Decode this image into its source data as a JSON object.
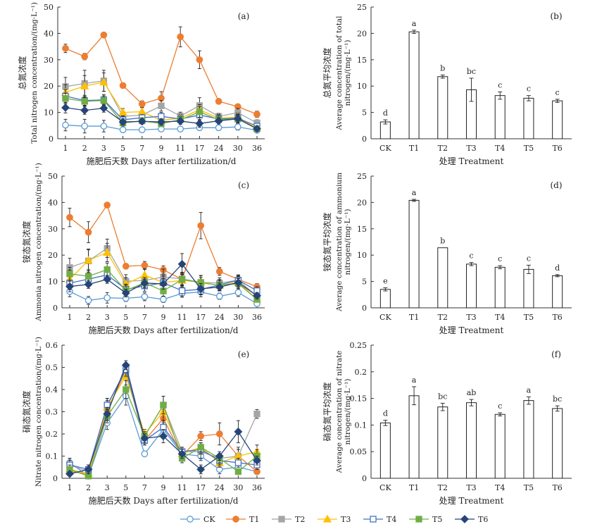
{
  "colors": {
    "CK": "#5b9bd5",
    "T1": "#ed7d31",
    "T2": "#a5a5a5",
    "T3": "#ffc000",
    "T4": "#4472c4",
    "T5": "#70ad47",
    "T6": "#264478"
  },
  "series_styles": {
    "CK": {
      "marker": "circle",
      "filled": false
    },
    "T1": {
      "marker": "circle",
      "filled": true
    },
    "T2": {
      "marker": "square",
      "filled": true
    },
    "T3": {
      "marker": "triangle",
      "filled": true
    },
    "T4": {
      "marker": "square",
      "filled": false
    },
    "T5": {
      "marker": "square",
      "filled": true
    },
    "T6": {
      "marker": "diamond",
      "filled": true
    }
  },
  "legend": [
    "CK",
    "T1",
    "T2",
    "T3",
    "T4",
    "T5",
    "T6"
  ],
  "chart_data": [
    {
      "id": "a",
      "type": "line",
      "panel_label": "(a)",
      "title_cn": "总氮浓度",
      "ylabel": "Total nitrogen concentration/(mg·L⁻¹)",
      "xlabel": "施肥后天数 Days after fertilization/d",
      "categories": [
        "1",
        "2",
        "3",
        "5",
        "7",
        "9",
        "11",
        "17",
        "24",
        "30",
        "36"
      ],
      "ylim": [
        0,
        50
      ],
      "yticks": [
        0,
        10,
        20,
        30,
        40,
        50
      ],
      "series": [
        {
          "name": "CK",
          "values": [
            5.2,
            4.8,
            4.8,
            3.4,
            3.4,
            3.7,
            3.7,
            4.2,
            4.2,
            4.5,
            3.2
          ],
          "err": [
            2.2,
            2.6,
            2.2,
            0.8,
            0.6,
            0.6,
            0.8,
            1.0,
            1.0,
            1.2,
            0.8
          ]
        },
        {
          "name": "T1",
          "values": [
            34.3,
            31.2,
            39.4,
            20.2,
            13.2,
            15.4,
            38.7,
            30.0,
            14.2,
            12.2,
            9.3
          ],
          "err": [
            1.6,
            1.2,
            0.5,
            0.5,
            1.2,
            2.5,
            3.8,
            3.4,
            0.5,
            0.5,
            1.2
          ]
        },
        {
          "name": "T2",
          "values": [
            19.8,
            21.0,
            22.0,
            8.5,
            9.0,
            12.5,
            8.6,
            12.6,
            8.5,
            9.9,
            6.0
          ],
          "err": [
            3.5,
            5.0,
            4.0,
            1.8,
            1.5,
            2.0,
            1.5,
            3.0,
            1.2,
            1.6,
            1.2
          ]
        },
        {
          "name": "T3",
          "values": [
            17.6,
            20.0,
            21.5,
            10.0,
            10.3,
            7.0,
            7.8,
            11.0,
            7.8,
            8.2,
            4.0
          ],
          "err": [
            3.0,
            4.0,
            3.5,
            1.5,
            1.5,
            1.5,
            1.5,
            2.0,
            1.5,
            1.5,
            1.0
          ]
        },
        {
          "name": "T4",
          "values": [
            16.2,
            14.5,
            14.8,
            7.2,
            8.0,
            8.5,
            7.5,
            9.0,
            7.5,
            7.8,
            4.8
          ],
          "err": [
            2.5,
            2.0,
            2.0,
            1.5,
            1.2,
            1.5,
            1.2,
            2.0,
            1.5,
            1.5,
            1.0
          ]
        },
        {
          "name": "T5",
          "values": [
            15.3,
            14.2,
            14.5,
            6.0,
            6.8,
            5.8,
            7.2,
            10.2,
            7.2,
            7.5,
            3.8
          ],
          "err": [
            2.0,
            1.5,
            1.8,
            1.2,
            1.2,
            1.2,
            1.2,
            2.0,
            1.2,
            1.5,
            1.0
          ]
        },
        {
          "name": "T6",
          "values": [
            11.8,
            10.8,
            11.6,
            6.4,
            6.6,
            6.4,
            6.7,
            5.8,
            6.8,
            7.6,
            3.8
          ],
          "err": [
            2.0,
            1.5,
            1.5,
            1.2,
            1.0,
            1.2,
            1.2,
            1.5,
            1.2,
            1.5,
            1.0
          ]
        }
      ]
    },
    {
      "id": "b",
      "type": "bar",
      "panel_label": "(b)",
      "title_cn": "总氮平均浓度",
      "ylabel": "Average concentration of total nitrogen/(mg·L⁻¹)",
      "xlabel": "处理 Treatment",
      "categories": [
        "CK",
        "T1",
        "T2",
        "T3",
        "T4",
        "T5",
        "T6"
      ],
      "values": [
        3.2,
        20.3,
        11.8,
        9.3,
        8.2,
        7.7,
        7.2
      ],
      "err": [
        0.4,
        0.3,
        0.3,
        2.2,
        0.7,
        0.5,
        0.3
      ],
      "letters": [
        "d",
        "a",
        "b",
        "bc",
        "c",
        "c",
        "c"
      ],
      "ylim": [
        0,
        25
      ],
      "yticks": [
        0,
        5,
        10,
        15,
        20,
        25
      ]
    },
    {
      "id": "c",
      "type": "line",
      "panel_label": "(c)",
      "title_cn": "铵态氮浓度",
      "ylabel": "Ammonia nitrogen concentration/(mg·L⁻¹)",
      "xlabel": "施肥后天数 Days after fertilization/d",
      "categories": [
        "1",
        "2",
        "3",
        "5",
        "7",
        "9",
        "11",
        "17",
        "24",
        "30",
        "36"
      ],
      "ylim": [
        0,
        50
      ],
      "yticks": [
        0,
        10,
        20,
        30,
        40,
        50
      ],
      "series": [
        {
          "name": "CK",
          "values": [
            6.2,
            2.8,
            3.8,
            3.6,
            4.2,
            3.2,
            5.5,
            6.0,
            4.4,
            5.8,
            1.6
          ],
          "err": [
            2.0,
            1.5,
            2.0,
            1.2,
            1.5,
            1.2,
            1.5,
            1.8,
            1.2,
            1.5,
            0.8
          ]
        },
        {
          "name": "T1",
          "values": [
            34.3,
            28.7,
            39.0,
            15.8,
            16.1,
            14.4,
            10.8,
            31.2,
            13.8,
            10.8,
            8.0
          ],
          "err": [
            3.5,
            4.0,
            0.5,
            0.5,
            1.5,
            1.5,
            2.5,
            5.0,
            1.5,
            1.5,
            1.2
          ]
        },
        {
          "name": "T2",
          "values": [
            15.3,
            17.8,
            22.6,
            10.1,
            10.4,
            11.7,
            11.0,
            9.7,
            9.4,
            10.5,
            4.3
          ],
          "err": [
            3.5,
            4.5,
            3.5,
            2.5,
            2.5,
            3.0,
            2.5,
            2.5,
            2.0,
            1.5,
            1.2
          ]
        },
        {
          "name": "T3",
          "values": [
            10.8,
            18.0,
            21.0,
            9.0,
            12.4,
            9.6,
            10.4,
            9.8,
            8.5,
            9.7,
            3.2
          ],
          "err": [
            3.5,
            4.0,
            3.5,
            2.5,
            2.5,
            3.0,
            2.5,
            2.5,
            2.0,
            2.0,
            1.0
          ]
        },
        {
          "name": "T4",
          "values": [
            9.4,
            10.9,
            12.5,
            7.0,
            8.3,
            9.5,
            6.5,
            7.0,
            8.7,
            10.5,
            6.5
          ],
          "err": [
            2.5,
            2.5,
            2.5,
            2.0,
            2.0,
            2.5,
            2.0,
            2.0,
            2.0,
            2.0,
            1.5
          ]
        },
        {
          "name": "T5",
          "values": [
            12.9,
            12.0,
            14.5,
            6.6,
            9.5,
            6.4,
            10.8,
            9.5,
            8.6,
            9.2,
            3.2
          ],
          "err": [
            2.5,
            2.5,
            2.5,
            2.0,
            2.0,
            2.0,
            2.0,
            2.0,
            2.0,
            2.0,
            1.0
          ]
        },
        {
          "name": "T6",
          "values": [
            8.1,
            8.9,
            10.8,
            5.6,
            9.4,
            9.1,
            16.6,
            7.2,
            7.9,
            9.6,
            4.6
          ],
          "err": [
            2.0,
            1.5,
            1.5,
            1.5,
            1.5,
            2.0,
            4.0,
            2.0,
            1.5,
            1.5,
            1.2
          ]
        }
      ]
    },
    {
      "id": "d",
      "type": "bar",
      "panel_label": "(d)",
      "title_cn": "铵态氮平均浓度",
      "ylabel": "Average concentration of ammonium nitrogen/(mg·L⁻¹)",
      "xlabel": "处理 Treatment",
      "categories": [
        "CK",
        "T1",
        "T2",
        "T3",
        "T4",
        "T5",
        "T6"
      ],
      "values": [
        3.5,
        20.4,
        11.4,
        8.3,
        7.7,
        7.3,
        6.1
      ],
      "err": [
        0.3,
        0.2,
        0.0,
        0.3,
        0.3,
        0.8,
        0.2
      ],
      "letters": [
        "e",
        "a",
        "b",
        "c",
        "c",
        "c",
        "d"
      ],
      "ylim": [
        0,
        25
      ],
      "yticks": [
        0,
        5,
        10,
        15,
        20,
        25
      ]
    },
    {
      "id": "e",
      "type": "line",
      "panel_label": "(e)",
      "title_cn": "硝态氮浓度",
      "ylabel": "Nitrate nitrogen concentration/(mg·L⁻¹)",
      "xlabel": "施肥后天数 Days after fertilization/d",
      "categories": [
        "1",
        "2",
        "3",
        "5",
        "7",
        "9",
        "11",
        "17",
        "24",
        "30",
        "36"
      ],
      "ylim": [
        0,
        0.6
      ],
      "yticks": [
        0,
        0.1,
        0.2,
        0.3,
        0.4,
        0.5,
        0.6
      ],
      "series": [
        {
          "name": "CK",
          "values": [
            0.07,
            0.01,
            0.25,
            0.37,
            0.11,
            0.22,
            0.11,
            0.1,
            0.04,
            0.05,
            0.03
          ],
          "err": [
            0.02,
            0.01,
            0.03,
            0.04,
            0.01,
            0.03,
            0.02,
            0.02,
            0.02,
            0.02,
            0.01
          ]
        },
        {
          "name": "T1",
          "values": [
            0.03,
            0.02,
            0.31,
            0.48,
            0.17,
            0.27,
            0.1,
            0.19,
            0.2,
            0.1,
            0.03
          ],
          "err": [
            0.02,
            0.01,
            0.03,
            0.03,
            0.02,
            0.04,
            0.02,
            0.02,
            0.05,
            0.03,
            0.01
          ]
        },
        {
          "name": "T2",
          "values": [
            0.06,
            0.03,
            0.33,
            0.48,
            0.19,
            0.33,
            0.12,
            0.12,
            0.09,
            0.1,
            0.29
          ],
          "err": [
            0.03,
            0.02,
            0.03,
            0.03,
            0.02,
            0.04,
            0.02,
            0.03,
            0.02,
            0.04,
            0.02
          ]
        },
        {
          "name": "T3",
          "values": [
            0.04,
            0.02,
            0.32,
            0.46,
            0.2,
            0.3,
            0.11,
            0.14,
            0.07,
            0.1,
            0.12
          ],
          "err": [
            0.02,
            0.01,
            0.03,
            0.04,
            0.02,
            0.04,
            0.02,
            0.02,
            0.02,
            0.03,
            0.03
          ]
        },
        {
          "name": "T4",
          "values": [
            0.06,
            0.04,
            0.33,
            0.49,
            0.17,
            0.23,
            0.12,
            0.13,
            0.08,
            0.07,
            0.06
          ],
          "err": [
            0.02,
            0.02,
            0.03,
            0.03,
            0.02,
            0.03,
            0.02,
            0.02,
            0.02,
            0.02,
            0.02
          ]
        },
        {
          "name": "T5",
          "values": [
            0.04,
            0.01,
            0.28,
            0.4,
            0.19,
            0.33,
            0.09,
            0.14,
            0.09,
            0.03,
            0.1
          ],
          "err": [
            0.02,
            0.01,
            0.03,
            0.04,
            0.02,
            0.04,
            0.02,
            0.02,
            0.02,
            0.01,
            0.03
          ]
        },
        {
          "name": "T6",
          "values": [
            0.02,
            0.04,
            0.29,
            0.51,
            0.18,
            0.19,
            0.11,
            0.04,
            0.1,
            0.21,
            0.08
          ],
          "err": [
            0.01,
            0.02,
            0.03,
            0.02,
            0.02,
            0.03,
            0.02,
            0.02,
            0.02,
            0.05,
            0.02
          ]
        }
      ]
    },
    {
      "id": "f",
      "type": "bar",
      "panel_label": "(f)",
      "title_cn": "硝态氮平均浓度",
      "ylabel": "Average concentration of nitrate nitrogen/(mg·L⁻¹)",
      "xlabel": "处理 Treatment",
      "categories": [
        "CK",
        "T1",
        "T2",
        "T3",
        "T4",
        "T5",
        "T6"
      ],
      "values": [
        0.104,
        0.155,
        0.134,
        0.142,
        0.12,
        0.146,
        0.131
      ],
      "err": [
        0.005,
        0.017,
        0.007,
        0.006,
        0.003,
        0.007,
        0.005
      ],
      "letters": [
        "d",
        "a",
        "bc",
        "ab",
        "c",
        "a",
        "bc"
      ],
      "ylim": [
        0,
        0.25
      ],
      "yticks": [
        0,
        0.05,
        0.1,
        0.15,
        0.2,
        0.25
      ]
    }
  ]
}
